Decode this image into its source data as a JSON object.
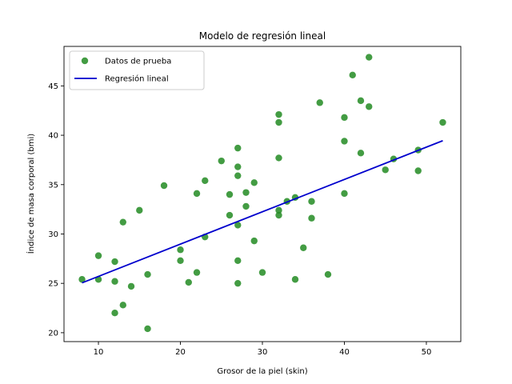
{
  "chart_data": {
    "type": "scatter",
    "title": "Modelo de regresión lineal",
    "xlabel": "Grosor de la piel (skin)",
    "ylabel": "Índice de masa corporal (bmi)",
    "xlim": [
      5.8,
      54.2
    ],
    "ylim": [
      19.1,
      49.0
    ],
    "xticks": [
      10,
      20,
      30,
      40,
      50
    ],
    "yticks": [
      20,
      25,
      30,
      35,
      40,
      45
    ],
    "grid": false,
    "legend_position": "top-left",
    "series": [
      {
        "name": "Datos de prueba",
        "kind": "scatter",
        "color": "#228B22",
        "points": [
          [
            8,
            25.4
          ],
          [
            10,
            27.8
          ],
          [
            10,
            25.4
          ],
          [
            12,
            27.2
          ],
          [
            12,
            25.2
          ],
          [
            12,
            22.0
          ],
          [
            13,
            31.2
          ],
          [
            13,
            22.8
          ],
          [
            14,
            24.7
          ],
          [
            15,
            32.4
          ],
          [
            16,
            25.9
          ],
          [
            16,
            20.4
          ],
          [
            18,
            34.9
          ],
          [
            20,
            28.4
          ],
          [
            20,
            27.3
          ],
          [
            21,
            25.1
          ],
          [
            22,
            34.1
          ],
          [
            22,
            26.1
          ],
          [
            23,
            35.4
          ],
          [
            23,
            29.7
          ],
          [
            25,
            37.4
          ],
          [
            26,
            34.0
          ],
          [
            26,
            31.9
          ],
          [
            27,
            38.7
          ],
          [
            27,
            36.8
          ],
          [
            27,
            35.9
          ],
          [
            27,
            30.9
          ],
          [
            27,
            27.3
          ],
          [
            27,
            25.0
          ],
          [
            28,
            34.2
          ],
          [
            28,
            32.8
          ],
          [
            29,
            35.2
          ],
          [
            29,
            29.3
          ],
          [
            30,
            26.1
          ],
          [
            32,
            42.1
          ],
          [
            32,
            41.3
          ],
          [
            32,
            37.7
          ],
          [
            32,
            32.4
          ],
          [
            32,
            31.9
          ],
          [
            33,
            33.3
          ],
          [
            34,
            33.7
          ],
          [
            34,
            25.4
          ],
          [
            35,
            28.6
          ],
          [
            36,
            33.3
          ],
          [
            36,
            31.6
          ],
          [
            37,
            43.3
          ],
          [
            38,
            25.9
          ],
          [
            40,
            41.8
          ],
          [
            40,
            39.4
          ],
          [
            40,
            34.1
          ],
          [
            41,
            46.1
          ],
          [
            42,
            43.5
          ],
          [
            42,
            38.2
          ],
          [
            43,
            47.9
          ],
          [
            43,
            42.9
          ],
          [
            45,
            36.5
          ],
          [
            46,
            37.6
          ],
          [
            49,
            38.5
          ],
          [
            49,
            36.4
          ],
          [
            52,
            41.3
          ]
        ]
      },
      {
        "name": "Regresión lineal",
        "kind": "line",
        "color": "#0000CD",
        "points": [
          [
            8,
            25.05
          ],
          [
            52,
            39.45
          ]
        ]
      }
    ]
  }
}
